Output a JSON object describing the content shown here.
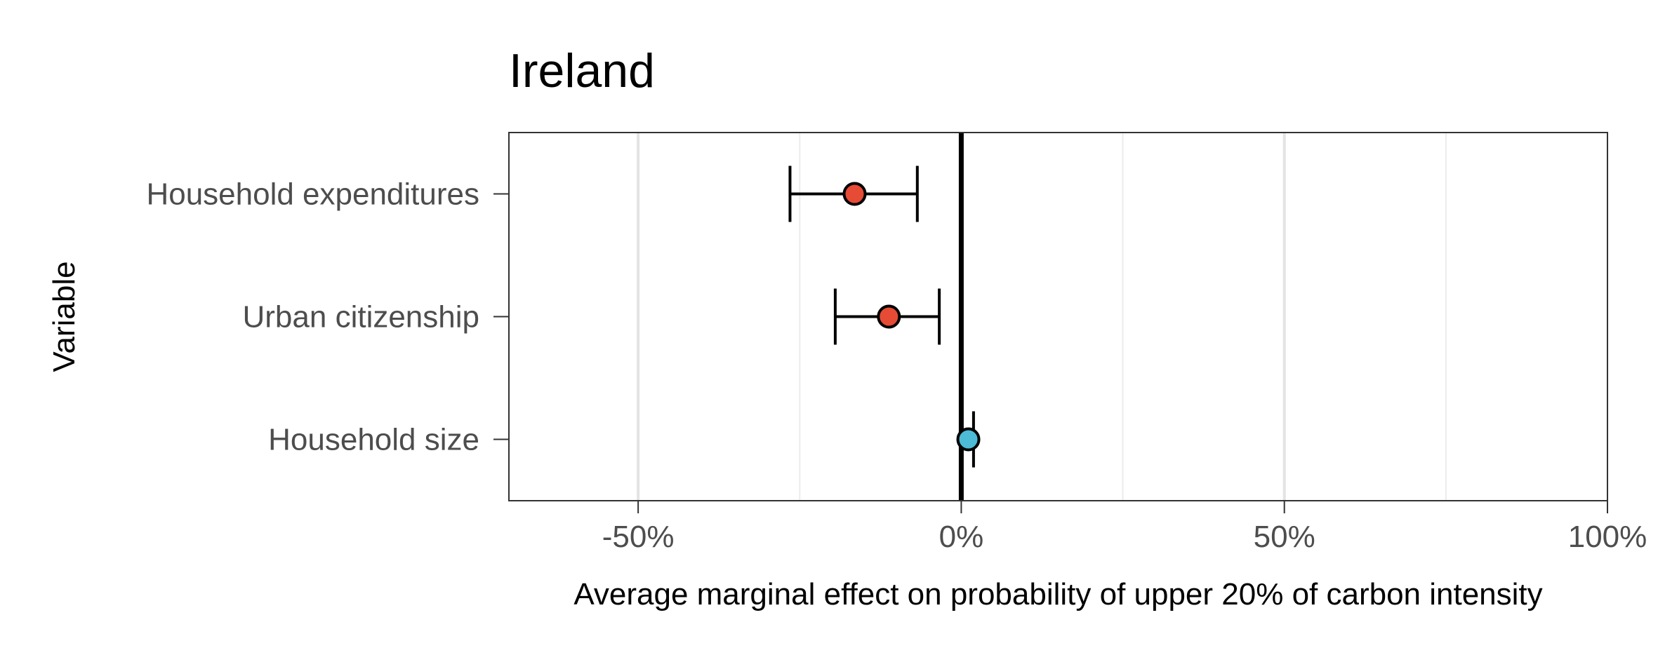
{
  "chart_data": {
    "type": "scatter",
    "title": "Ireland",
    "xlabel": "Average marginal effect on probability of upper 20% of carbon intensity",
    "ylabel": "Variable",
    "xlim": [
      -70,
      100
    ],
    "x_ticks": [
      -50,
      0,
      50,
      100
    ],
    "x_tick_labels": [
      "-50%",
      "0%",
      "50%",
      "100%"
    ],
    "x_minor_gridlines": [
      -25,
      25,
      75
    ],
    "reference_line": 0,
    "grid": true,
    "categories": [
      "Household expenditures",
      "Urban citizenship",
      "Household size"
    ],
    "points": [
      {
        "category": "Household expenditures",
        "estimate": -16.5,
        "lower": -26.5,
        "upper": -6.8,
        "color": "#E64B35"
      },
      {
        "category": "Urban citizenship",
        "estimate": -11.2,
        "lower": -19.5,
        "upper": -3.4,
        "color": "#E64B35"
      },
      {
        "category": "Household size",
        "estimate": 1.1,
        "lower": 0.1,
        "upper": 1.9,
        "color": "#4DBBD5"
      }
    ]
  }
}
